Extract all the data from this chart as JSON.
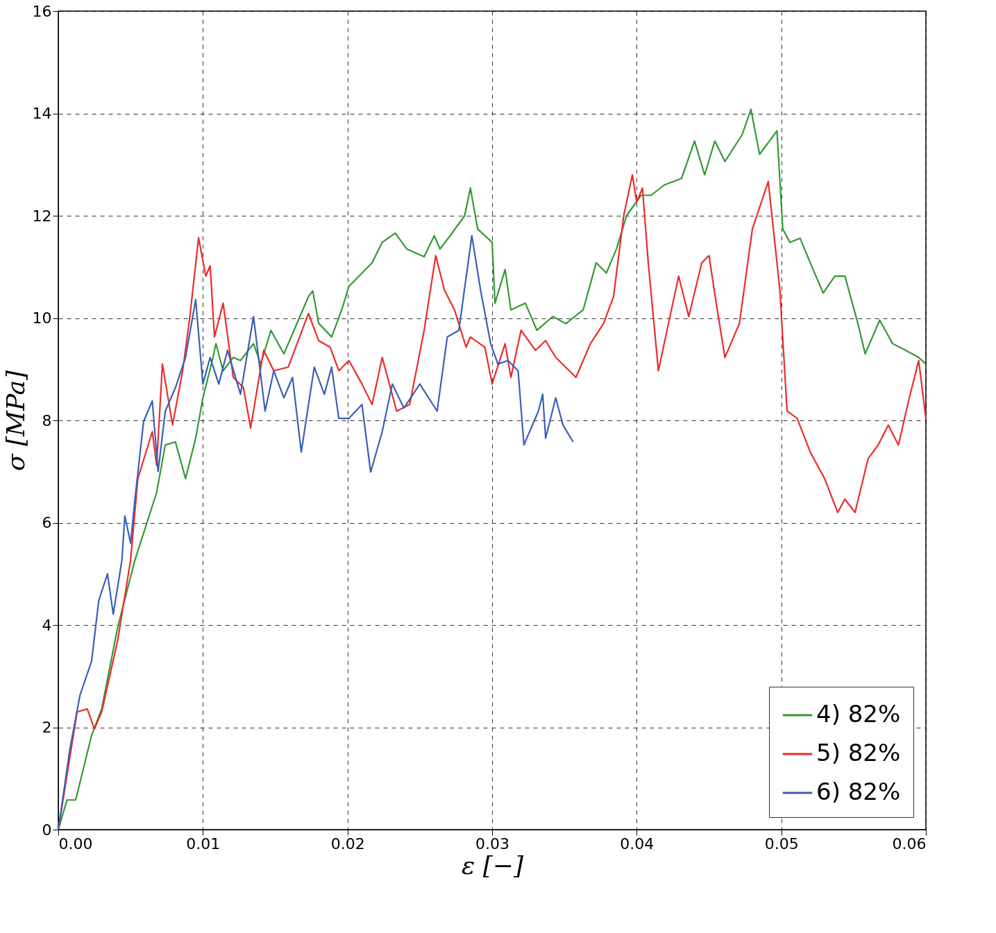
{
  "chart_data": {
    "type": "line",
    "xlabel": "ε [−]",
    "ylabel": "σ [MPa]",
    "xlim": [
      0,
      0.06
    ],
    "ylim": [
      0,
      16
    ],
    "xticks": [
      {
        "value": 0,
        "label": "0.00"
      },
      {
        "value": 0.01,
        "label": "0.01"
      },
      {
        "value": 0.02,
        "label": "0.02"
      },
      {
        "value": 0.03,
        "label": "0.03"
      },
      {
        "value": 0.04,
        "label": "0.04"
      },
      {
        "value": 0.05,
        "label": "0.05"
      },
      {
        "value": 0.06,
        "label": "0.06"
      }
    ],
    "yticks": [
      0,
      2,
      4,
      6,
      8,
      10,
      12,
      14,
      16
    ],
    "grid": true,
    "legend": "bottom right",
    "line_style": "solid",
    "marker": "none",
    "series": [
      {
        "name": "4) 82%",
        "color": "#339933",
        "x": [
          0,
          0.0006,
          0.0012,
          0.0023,
          0.003,
          0.0041,
          0.0053,
          0.0062,
          0.0068,
          0.0074,
          0.0081,
          0.0088,
          0.0095,
          0.01,
          0.0107,
          0.0109,
          0.0114,
          0.0121,
          0.0126,
          0.0135,
          0.014,
          0.0147,
          0.0156,
          0.0163,
          0.0173,
          0.0176,
          0.018,
          0.0189,
          0.0196,
          0.0201,
          0.0208,
          0.0217,
          0.0224,
          0.0233,
          0.0241,
          0.0253,
          0.026,
          0.0264,
          0.0271,
          0.0281,
          0.0285,
          0.029,
          0.03,
          0.0302,
          0.0309,
          0.0313,
          0.0323,
          0.0331,
          0.0342,
          0.0351,
          0.0363,
          0.0372,
          0.0379,
          0.0386,
          0.0393,
          0.0403,
          0.041,
          0.0419,
          0.0431,
          0.044,
          0.0447,
          0.0454,
          0.0461,
          0.0473,
          0.0479,
          0.0485,
          0.0497,
          0.0501,
          0.0506,
          0.0513,
          0.052,
          0.0529,
          0.0537,
          0.0544,
          0.0553,
          0.0558,
          0.0565,
          0.0568,
          0.0577,
          0.0586,
          0.0595,
          0.06
        ],
        "values": [
          0,
          0.58,
          0.58,
          1.84,
          2.36,
          3.95,
          5.27,
          6.06,
          6.59,
          7.52,
          7.58,
          6.86,
          7.65,
          8.44,
          9.23,
          9.5,
          8.97,
          9.23,
          9.17,
          9.5,
          9.1,
          9.76,
          9.3,
          9.76,
          10.42,
          10.53,
          9.9,
          9.63,
          10.16,
          10.62,
          10.82,
          11.08,
          11.48,
          11.66,
          11.35,
          11.2,
          11.61,
          11.35,
          11.61,
          12.0,
          12.54,
          11.74,
          11.48,
          10.29,
          10.95,
          10.16,
          10.29,
          9.76,
          10.03,
          9.89,
          10.16,
          11.08,
          10.88,
          11.35,
          12.0,
          12.4,
          12.4,
          12.6,
          12.73,
          13.46,
          12.8,
          13.46,
          13.06,
          13.59,
          14.08,
          13.2,
          13.66,
          11.74,
          11.48,
          11.56,
          11.08,
          10.49,
          10.82,
          10.82,
          9.89,
          9.3,
          9.76,
          9.96,
          9.5,
          9.37,
          9.23,
          9.1
        ]
      },
      {
        "name": "5) 82%",
        "color": "#ee2a2a",
        "x": [
          0,
          0.0013,
          0.002,
          0.0025,
          0.003,
          0.0041,
          0.005,
          0.0055,
          0.0065,
          0.0068,
          0.0072,
          0.0079,
          0.0086,
          0.0091,
          0.0097,
          0.0102,
          0.0105,
          0.0108,
          0.0114,
          0.0121,
          0.0128,
          0.0133,
          0.0142,
          0.0149,
          0.0159,
          0.0173,
          0.018,
          0.0188,
          0.0194,
          0.0201,
          0.021,
          0.0217,
          0.0224,
          0.0234,
          0.0243,
          0.0253,
          0.0261,
          0.0267,
          0.0274,
          0.0282,
          0.0285,
          0.0295,
          0.03,
          0.0309,
          0.0313,
          0.032,
          0.033,
          0.0337,
          0.0344,
          0.0358,
          0.0368,
          0.0377,
          0.0384,
          0.0391,
          0.0397,
          0.04,
          0.0404,
          0.0408,
          0.0415,
          0.0419,
          0.0429,
          0.0436,
          0.0445,
          0.045,
          0.0455,
          0.0461,
          0.0471,
          0.048,
          0.0491,
          0.0499,
          0.0504,
          0.0511,
          0.052,
          0.053,
          0.0539,
          0.0544,
          0.0551,
          0.056,
          0.0567,
          0.0574,
          0.0581,
          0.0588,
          0.0595,
          0.06
        ],
        "values": [
          0,
          2.3,
          2.36,
          1.97,
          2.3,
          3.69,
          5.27,
          6.86,
          7.78,
          7.12,
          9.1,
          7.91,
          8.97,
          10.03,
          11.57,
          10.82,
          11.02,
          9.63,
          10.29,
          8.84,
          8.64,
          7.85,
          9.37,
          8.97,
          9.04,
          10.09,
          9.56,
          9.43,
          8.97,
          9.17,
          8.71,
          8.31,
          9.23,
          8.18,
          8.31,
          9.76,
          11.22,
          10.55,
          10.16,
          9.43,
          9.63,
          9.43,
          8.71,
          9.5,
          8.84,
          9.76,
          9.37,
          9.56,
          9.23,
          8.84,
          9.5,
          9.89,
          10.42,
          12.0,
          12.8,
          12.27,
          12.54,
          11.08,
          8.97,
          9.5,
          10.82,
          10.03,
          11.08,
          11.22,
          10.29,
          9.23,
          9.89,
          11.74,
          12.67,
          10.55,
          8.18,
          8.04,
          7.38,
          6.86,
          6.2,
          6.46,
          6.2,
          7.25,
          7.52,
          7.91,
          7.52,
          8.38,
          9.17,
          8.04
        ]
      },
      {
        "name": "6) 82%",
        "color": "#3a5fb8",
        "x": [
          0,
          0.0008,
          0.0015,
          0.0023,
          0.0028,
          0.0034,
          0.0038,
          0.0044,
          0.0046,
          0.005,
          0.0053,
          0.0059,
          0.0065,
          0.0069,
          0.0074,
          0.0081,
          0.0088,
          0.0095,
          0.01,
          0.0105,
          0.0111,
          0.0117,
          0.0126,
          0.0135,
          0.0143,
          0.0149,
          0.0156,
          0.0162,
          0.0168,
          0.0177,
          0.0184,
          0.0189,
          0.0194,
          0.0201,
          0.021,
          0.0216,
          0.0224,
          0.0231,
          0.0239,
          0.025,
          0.0262,
          0.0269,
          0.0277,
          0.0286,
          0.0292,
          0.0299,
          0.0304,
          0.0311,
          0.0318,
          0.0322,
          0.0332,
          0.0335,
          0.0337,
          0.0344,
          0.0349,
          0.0356
        ],
        "values": [
          0,
          1.57,
          2.63,
          3.29,
          4.48,
          5.0,
          4.21,
          5.27,
          6.13,
          5.6,
          6.46,
          7.98,
          8.38,
          7.0,
          8.18,
          8.64,
          9.23,
          10.36,
          8.71,
          9.23,
          8.71,
          9.37,
          8.51,
          10.03,
          8.18,
          8.97,
          8.44,
          8.84,
          7.38,
          9.04,
          8.51,
          9.04,
          8.04,
          8.04,
          8.31,
          6.99,
          7.78,
          8.71,
          8.24,
          8.71,
          8.18,
          9.63,
          9.76,
          11.61,
          10.55,
          9.5,
          9.1,
          9.17,
          8.97,
          7.52,
          8.18,
          8.51,
          7.65,
          8.44,
          7.91,
          7.58
        ]
      }
    ]
  }
}
